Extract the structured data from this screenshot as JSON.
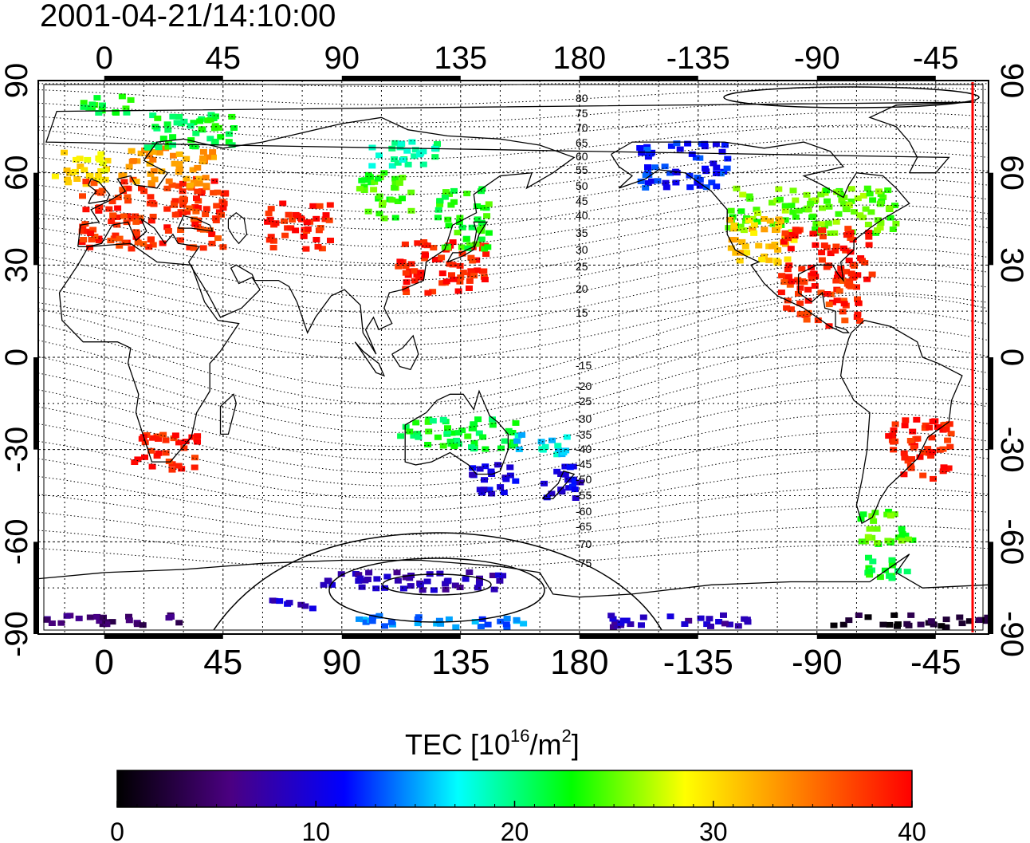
{
  "timestamp": "2001-04-21/14:10:00",
  "map": {
    "lon_tick_labels": [
      "0",
      "45",
      "90",
      "135",
      "180",
      "-135",
      "-90",
      "-45"
    ],
    "lat_tick_labels": [
      "90",
      "60",
      "30",
      "0",
      "-30",
      "-60",
      "-90"
    ],
    "magnetic_lat_contour_labels": [
      "80",
      "75",
      "70",
      "65",
      "60",
      "55",
      "50",
      "45",
      "40",
      "35",
      "30",
      "25",
      "20",
      "15",
      "-15",
      "-20",
      "-25",
      "-30",
      "-35",
      "-40",
      "-45",
      "-50",
      "-55",
      "-60",
      "-65",
      "-70",
      "-75"
    ],
    "projection": "cylindrical",
    "lon_range": [
      -25,
      335
    ],
    "lat_range": [
      -90,
      90
    ],
    "terminator_color": "#ff0000"
  },
  "colorbar": {
    "title_prefix": "TEC  [10",
    "title_exp1": "16",
    "title_mid": "/m",
    "title_exp2": "2",
    "title_suffix": "]",
    "min": 0,
    "max": 40,
    "tick_labels": [
      "0",
      "10",
      "20",
      "30",
      "40"
    ],
    "colormap": [
      "#000000",
      "#4b0082",
      "#0000ff",
      "#00ffff",
      "#00ff00",
      "#ffff00",
      "#ff8000",
      "#ff0000"
    ]
  },
  "chart_data": {
    "type": "heatmap",
    "title": "2001-04-21/14:10:00",
    "xlabel": "",
    "ylabel": "",
    "xlim": [
      -25,
      335
    ],
    "ylim": [
      -90,
      90
    ],
    "value_range": [
      0,
      40
    ],
    "regions": [
      {
        "lon_min": -20,
        "lon_max": 0,
        "lat_min": 55,
        "lat_max": 68,
        "tec": 30
      },
      {
        "lon_min": -10,
        "lon_max": 45,
        "lat_min": 35,
        "lat_max": 58,
        "tec": 38
      },
      {
        "lon_min": 5,
        "lon_max": 40,
        "lat_min": 55,
        "lat_max": 68,
        "tec": 33
      },
      {
        "lon_min": 15,
        "lon_max": 50,
        "lat_min": 68,
        "lat_max": 80,
        "tec": 22
      },
      {
        "lon_min": -10,
        "lon_max": 10,
        "lat_min": 78,
        "lat_max": 85,
        "tec": 22
      },
      {
        "lon_min": 60,
        "lon_max": 85,
        "lat_min": 35,
        "lat_max": 50,
        "tec": 39
      },
      {
        "lon_min": 110,
        "lon_max": 145,
        "lat_min": 20,
        "lat_max": 38,
        "tec": 39
      },
      {
        "lon_min": 125,
        "lon_max": 145,
        "lat_min": 35,
        "lat_max": 55,
        "tec": 23
      },
      {
        "lon_min": 95,
        "lon_max": 115,
        "lat_min": 45,
        "lat_max": 60,
        "tec": 24
      },
      {
        "lon_min": 100,
        "lon_max": 130,
        "lat_min": 62,
        "lat_max": 70,
        "tec": 19
      },
      {
        "lon_min": 200,
        "lon_max": 235,
        "lat_min": 55,
        "lat_max": 70,
        "tec": 12
      },
      {
        "lon_min": 235,
        "lon_max": 300,
        "lat_min": 40,
        "lat_max": 55,
        "tec": 25
      },
      {
        "lon_min": 235,
        "lon_max": 260,
        "lat_min": 30,
        "lat_max": 45,
        "tec": 31
      },
      {
        "lon_min": 255,
        "lon_max": 290,
        "lat_min": 25,
        "lat_max": 42,
        "tec": 39
      },
      {
        "lon_min": 255,
        "lon_max": 285,
        "lat_min": 10,
        "lat_max": 25,
        "tec": 38
      },
      {
        "lon_min": 295,
        "lon_max": 320,
        "lat_min": -40,
        "lat_max": -20,
        "tec": 39
      },
      {
        "lon_min": 10,
        "lon_max": 35,
        "lat_min": -37,
        "lat_max": -25,
        "tec": 39
      },
      {
        "lon_min": 110,
        "lon_max": 155,
        "lat_min": -30,
        "lat_max": -20,
        "tec": 22
      },
      {
        "lon_min": 135,
        "lon_max": 155,
        "lat_min": -45,
        "lat_max": -35,
        "tec": 10
      },
      {
        "lon_min": 165,
        "lon_max": 180,
        "lat_min": -47,
        "lat_max": -35,
        "tec": 10
      },
      {
        "lon_min": 155,
        "lon_max": 175,
        "lat_min": -32,
        "lat_max": -25,
        "tec": 17
      },
      {
        "lon_min": 285,
        "lon_max": 305,
        "lat_min": -62,
        "lat_max": -50,
        "tec": 24
      },
      {
        "lon_min": 285,
        "lon_max": 305,
        "lat_min": -72,
        "lat_max": -65,
        "tec": 22
      },
      {
        "lon_min": -25,
        "lon_max": 30,
        "lat_min": -88,
        "lat_max": -84,
        "tec": 5
      },
      {
        "lon_min": 95,
        "lon_max": 160,
        "lat_min": -88,
        "lat_max": -84,
        "tec": 14
      },
      {
        "lon_min": 185,
        "lon_max": 245,
        "lat_min": -88,
        "lat_max": -84,
        "tec": 8
      },
      {
        "lon_min": 270,
        "lon_max": 335,
        "lat_min": -88,
        "lat_max": -84,
        "tec": 2
      },
      {
        "lon_min": 60,
        "lon_max": 80,
        "lat_min": -82,
        "lat_max": -79,
        "tec": 9
      },
      {
        "lon_min": 80,
        "lon_max": 150,
        "lat_min": -76,
        "lat_max": -70,
        "tec": 8
      }
    ]
  }
}
